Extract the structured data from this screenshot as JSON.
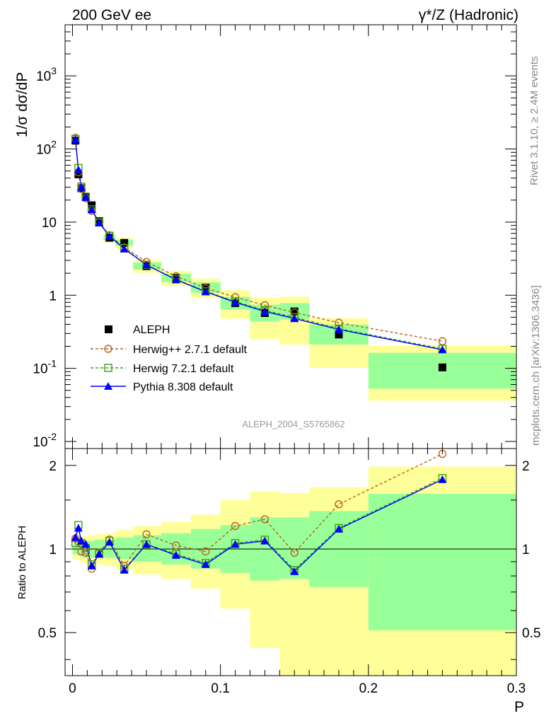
{
  "header": {
    "left_title": "200 GeV ee",
    "right_title": "γ*/Z (Hadronic)"
  },
  "side_text": {
    "rivet": "Rivet 3.1.10, ≥ 2.4M events",
    "mcplots": "mcplots.cern.ch [arXiv:1306.3436]"
  },
  "watermark": "ALEPH_2004_S5765862",
  "colors": {
    "aleph": "#000000",
    "herwigpp": "#b8621b",
    "herwig7": "#3aa016",
    "pythia": "#0000ff",
    "band_outer": "#ffff99",
    "band_inner": "#99ff99"
  },
  "chart_data": [
    {
      "type": "scatter",
      "ylabel": "1/σ  dσ/dP",
      "yscale": "log",
      "ylim": [
        0.008,
        5000
      ],
      "xlim": [
        -0.005,
        0.3
      ],
      "y_tick_labels": [
        "10^-2",
        "10^-1",
        "1",
        "10",
        "10^2",
        "10^3"
      ],
      "legend_position": "lower-left",
      "series": [
        {
          "name": "ALEPH",
          "marker": "filled-square",
          "line": "none",
          "x": [
            0.002,
            0.004,
            0.006,
            0.009,
            0.013,
            0.018,
            0.025,
            0.035,
            0.05,
            0.07,
            0.09,
            0.11,
            0.13,
            0.15,
            0.18,
            0.25
          ],
          "y": [
            130,
            45,
            29,
            22,
            17,
            10.3,
            6.1,
            5.2,
            2.5,
            1.72,
            1.27,
            0.78,
            0.57,
            0.6,
            0.29,
            0.103
          ]
        },
        {
          "name": "Herwig++ 2.7.1 default",
          "marker": "open-circle",
          "line": "dashed",
          "x": [
            0.002,
            0.004,
            0.006,
            0.009,
            0.013,
            0.018,
            0.025,
            0.035,
            0.05,
            0.07,
            0.09,
            0.11,
            0.13,
            0.15,
            0.18,
            0.25
          ],
          "y": [
            142,
            48,
            28.5,
            21.2,
            14.3,
            10.0,
            6.6,
            4.5,
            2.85,
            1.82,
            1.25,
            0.94,
            0.73,
            0.58,
            0.42,
            0.235
          ]
        },
        {
          "name": "Herwig 7.2.1 default",
          "marker": "open-square",
          "line": "dashed",
          "x": [
            0.002,
            0.004,
            0.006,
            0.009,
            0.013,
            0.018,
            0.025,
            0.035,
            0.05,
            0.07,
            0.09,
            0.11,
            0.13,
            0.15,
            0.18,
            0.25
          ],
          "y": [
            137,
            55,
            30.5,
            22.3,
            15.0,
            9.9,
            6.5,
            4.4,
            2.6,
            1.65,
            1.13,
            0.82,
            0.62,
            0.5,
            0.35,
            0.185
          ]
        },
        {
          "name": "Pythia 8.308 default",
          "marker": "filled-triangle",
          "line": "solid",
          "x": [
            0.002,
            0.004,
            0.006,
            0.009,
            0.013,
            0.018,
            0.025,
            0.035,
            0.05,
            0.07,
            0.09,
            0.11,
            0.13,
            0.15,
            0.18,
            0.25
          ],
          "y": [
            135,
            52,
            30,
            21.8,
            14.8,
            9.8,
            6.4,
            4.3,
            2.6,
            1.63,
            1.12,
            0.8,
            0.6,
            0.48,
            0.34,
            0.18
          ]
        }
      ]
    },
    {
      "type": "line",
      "ylabel": "Ratio to ALEPH",
      "xlabel": "P",
      "ylim": [
        0.35,
        2.3
      ],
      "xlim": [
        -0.005,
        0.3
      ],
      "x_tick_labels": [
        "0",
        "0.1",
        "0.2",
        "0.3"
      ],
      "y_tick_labels": [
        "0.5",
        "1",
        "2"
      ],
      "reference_line": 1,
      "bands": {
        "edges": [
          0.0,
          0.003,
          0.005,
          0.007,
          0.011,
          0.015,
          0.021,
          0.029,
          0.041,
          0.06,
          0.08,
          0.1,
          0.12,
          0.14,
          0.16,
          0.2,
          0.3
        ],
        "inner_low": [
          0.96,
          0.95,
          0.94,
          0.93,
          0.93,
          0.93,
          0.93,
          0.92,
          0.9,
          0.88,
          0.85,
          0.82,
          0.77,
          0.78,
          0.73,
          0.51
        ],
        "inner_high": [
          1.04,
          1.05,
          1.06,
          1.07,
          1.07,
          1.08,
          1.08,
          1.1,
          1.12,
          1.14,
          1.18,
          1.22,
          1.3,
          1.3,
          1.37,
          1.58
        ],
        "outer_low": [
          0.92,
          0.91,
          0.9,
          0.89,
          0.88,
          0.88,
          0.87,
          0.85,
          0.81,
          0.78,
          0.72,
          0.61,
          0.44,
          0.35,
          0.35,
          0.35
        ],
        "outer_high": [
          1.08,
          1.09,
          1.1,
          1.11,
          1.12,
          1.13,
          1.14,
          1.17,
          1.21,
          1.25,
          1.33,
          1.5,
          1.61,
          1.59,
          1.67,
          1.98
        ]
      },
      "series": [
        {
          "name": "Herwig++ 2.7.1 default",
          "marker": "open-circle",
          "line": "dashed",
          "x": [
            0.002,
            0.004,
            0.006,
            0.009,
            0.013,
            0.018,
            0.025,
            0.035,
            0.05,
            0.07,
            0.09,
            0.11,
            0.13,
            0.15,
            0.18,
            0.25
          ],
          "y": [
            1.09,
            1.06,
            0.98,
            0.97,
            0.85,
            0.97,
            1.08,
            0.87,
            1.13,
            1.03,
            0.98,
            1.21,
            1.28,
            0.97,
            1.45,
            2.2
          ]
        },
        {
          "name": "Herwig 7.2.1 default",
          "marker": "open-square",
          "line": "dashed",
          "x": [
            0.002,
            0.004,
            0.006,
            0.009,
            0.013,
            0.018,
            0.025,
            0.035,
            0.05,
            0.07,
            0.09,
            0.11,
            0.13,
            0.15,
            0.18,
            0.25
          ],
          "y": [
            1.05,
            1.22,
            1.05,
            1.01,
            0.88,
            0.96,
            1.07,
            0.85,
            1.04,
            0.96,
            0.89,
            1.05,
            1.08,
            0.84,
            1.19,
            1.8
          ]
        },
        {
          "name": "Pythia 8.308 default",
          "marker": "filled-triangle",
          "line": "solid",
          "x": [
            0.002,
            0.004,
            0.006,
            0.009,
            0.013,
            0.018,
            0.025,
            0.035,
            0.05,
            0.07,
            0.09,
            0.11,
            0.13,
            0.15,
            0.18,
            0.25
          ],
          "y": [
            1.1,
            1.19,
            1.07,
            1.04,
            0.87,
            0.96,
            1.06,
            0.84,
            1.04,
            0.95,
            0.88,
            1.04,
            1.07,
            0.83,
            1.18,
            1.78
          ]
        }
      ]
    }
  ]
}
